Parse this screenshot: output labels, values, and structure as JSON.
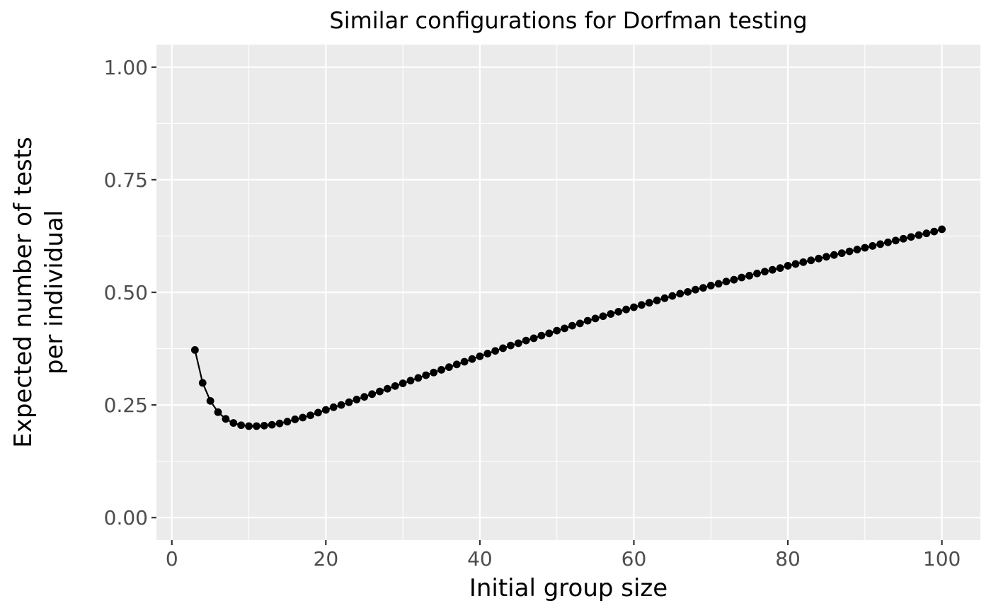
{
  "chart_data": {
    "type": "line",
    "title": "Similar configurations for Dorfman testing",
    "xlabel": "Initial group size",
    "ylabel_lines": [
      "Expected number of tests",
      "per individual"
    ],
    "xlim": [
      -2,
      105
    ],
    "ylim": [
      -0.05,
      1.05
    ],
    "x_ticks": [
      0,
      20,
      40,
      60,
      80,
      100
    ],
    "x_tick_labels": [
      "0",
      "20",
      "40",
      "60",
      "80",
      "100"
    ],
    "y_ticks": [
      0,
      0.25,
      0.5,
      0.75,
      1.0
    ],
    "y_tick_labels": [
      "0.00",
      "0.25",
      "0.50",
      "0.75",
      "1.00"
    ],
    "grid": true,
    "panel_color": "#ebebeb",
    "grid_color": "#ffffff",
    "series_color": "#000000",
    "series": [
      {
        "x": [
          3,
          4,
          5,
          6,
          7,
          8,
          9,
          10,
          11,
          12,
          13,
          14,
          15,
          16,
          17,
          18,
          19,
          20,
          21,
          22,
          23,
          24,
          25,
          26,
          27,
          28,
          29,
          30,
          31,
          32,
          33,
          34,
          35,
          36,
          37,
          38,
          39,
          40,
          41,
          42,
          43,
          44,
          45,
          46,
          47,
          48,
          49,
          50,
          51,
          52,
          53,
          54,
          55,
          56,
          57,
          58,
          59,
          60,
          61,
          62,
          63,
          64,
          65,
          66,
          67,
          68,
          69,
          70,
          71,
          72,
          73,
          74,
          75,
          76,
          77,
          78,
          79,
          80,
          81,
          82,
          83,
          84,
          85,
          86,
          87,
          88,
          89,
          90,
          91,
          92,
          93,
          94,
          95,
          96,
          97,
          98,
          99,
          100
        ],
        "y": [
          0.372,
          0.299,
          0.259,
          0.234,
          0.219,
          0.21,
          0.205,
          0.203,
          0.203,
          0.204,
          0.206,
          0.209,
          0.213,
          0.218,
          0.222,
          0.227,
          0.233,
          0.239,
          0.245,
          0.25,
          0.256,
          0.262,
          0.268,
          0.274,
          0.28,
          0.286,
          0.292,
          0.298,
          0.304,
          0.31,
          0.316,
          0.322,
          0.328,
          0.334,
          0.34,
          0.346,
          0.352,
          0.358,
          0.364,
          0.37,
          0.376,
          0.382,
          0.387,
          0.393,
          0.398,
          0.404,
          0.409,
          0.415,
          0.42,
          0.426,
          0.431,
          0.437,
          0.442,
          0.447,
          0.452,
          0.457,
          0.462,
          0.467,
          0.472,
          0.477,
          0.482,
          0.487,
          0.492,
          0.497,
          0.501,
          0.506,
          0.51,
          0.515,
          0.519,
          0.524,
          0.528,
          0.533,
          0.537,
          0.542,
          0.546,
          0.55,
          0.554,
          0.559,
          0.563,
          0.567,
          0.571,
          0.575,
          0.579,
          0.583,
          0.587,
          0.591,
          0.595,
          0.599,
          0.603,
          0.607,
          0.611,
          0.615,
          0.619,
          0.623,
          0.627,
          0.631,
          0.635,
          0.64
        ]
      }
    ]
  }
}
